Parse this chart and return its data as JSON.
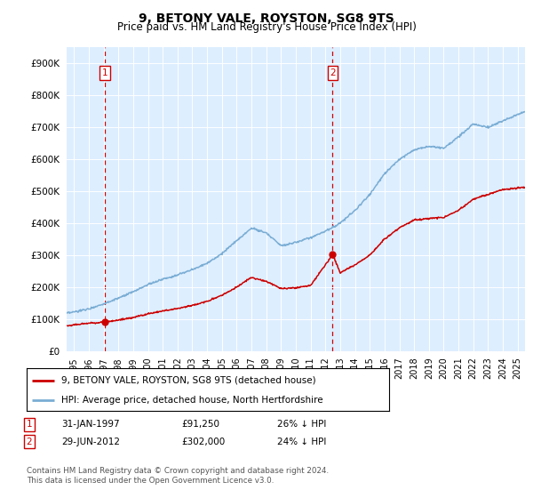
{
  "title": "9, BETONY VALE, ROYSTON, SG8 9TS",
  "subtitle": "Price paid vs. HM Land Registry's House Price Index (HPI)",
  "legend_line1": "9, BETONY VALE, ROYSTON, SG8 9TS (detached house)",
  "legend_line2": "HPI: Average price, detached house, North Hertfordshire",
  "footnote": "Contains HM Land Registry data © Crown copyright and database right 2024.\nThis data is licensed under the Open Government Licence v3.0.",
  "sale1_label": "1",
  "sale1_date": "31-JAN-1997",
  "sale1_price": "£91,250",
  "sale1_hpi": "26% ↓ HPI",
  "sale1_x": 1997.08,
  "sale1_y": 91250,
  "sale2_label": "2",
  "sale2_date": "29-JUN-2012",
  "sale2_price": "£302,000",
  "sale2_hpi": "24% ↓ HPI",
  "sale2_x": 2012.49,
  "sale2_y": 302000,
  "price_color": "#cc0000",
  "hpi_color": "#7aadd4",
  "bg_color": "#ddeeff",
  "ylim": [
    0,
    950000
  ],
  "xlim_start": 1994.5,
  "xlim_end": 2025.5,
  "yticks": [
    0,
    100000,
    200000,
    300000,
    400000,
    500000,
    600000,
    700000,
    800000,
    900000
  ],
  "xticks": [
    1995,
    1996,
    1997,
    1998,
    1999,
    2000,
    2001,
    2002,
    2003,
    2004,
    2005,
    2006,
    2007,
    2008,
    2009,
    2010,
    2011,
    2012,
    2013,
    2014,
    2015,
    2016,
    2017,
    2018,
    2019,
    2020,
    2021,
    2022,
    2023,
    2024,
    2025
  ],
  "hpi_anchors_x": [
    1994.5,
    1995,
    1996,
    1997,
    1998,
    1999,
    2000,
    2001,
    2002,
    2003,
    2004,
    2005,
    2006,
    2007,
    2008,
    2009,
    2010,
    2011,
    2012,
    2013,
    2014,
    2015,
    2016,
    2017,
    2018,
    2019,
    2020,
    2021,
    2022,
    2023,
    2024,
    2025,
    2025.5
  ],
  "hpi_anchors_y": [
    118000,
    122000,
    132000,
    148000,
    165000,
    185000,
    208000,
    225000,
    238000,
    255000,
    275000,
    305000,
    345000,
    385000,
    370000,
    330000,
    340000,
    355000,
    375000,
    400000,
    440000,
    490000,
    555000,
    600000,
    630000,
    640000,
    635000,
    670000,
    710000,
    700000,
    720000,
    740000,
    750000
  ],
  "price_anchors_x": [
    1994.5,
    1995,
    1996,
    1997.08,
    1998,
    1999,
    2000,
    2001,
    2002,
    2003,
    2004,
    2005,
    2006,
    2007,
    2008,
    2009,
    2010,
    2011,
    2012.49,
    2013,
    2014,
    2015,
    2016,
    2017,
    2018,
    2019,
    2020,
    2021,
    2022,
    2023,
    2024,
    2025,
    2025.5
  ],
  "price_anchors_y": [
    78000,
    82000,
    87000,
    91250,
    97000,
    105000,
    116000,
    125000,
    133000,
    143000,
    155000,
    175000,
    200000,
    230000,
    218000,
    195000,
    198000,
    205000,
    302000,
    245000,
    270000,
    300000,
    350000,
    385000,
    410000,
    415000,
    418000,
    440000,
    475000,
    490000,
    505000,
    510000,
    512000
  ]
}
